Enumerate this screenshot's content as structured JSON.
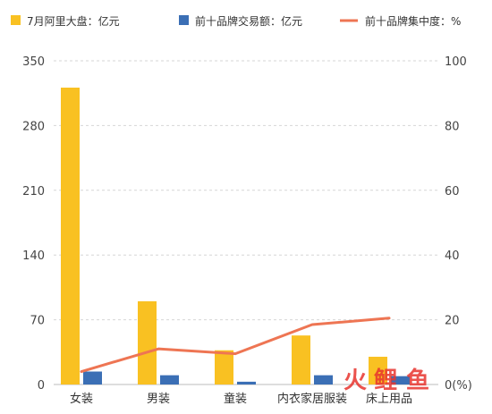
{
  "chart_data": {
    "type": "bar",
    "categories": [
      "女装",
      "男装",
      "童装",
      "内衣家居服装",
      "床上用品"
    ],
    "series": [
      {
        "name": "7月阿里大盘：亿元",
        "kind": "bar",
        "axis": "left",
        "color": "#F9C122",
        "values": [
          321,
          90,
          37,
          53,
          30
        ]
      },
      {
        "name": "前十品牌交易额：亿元",
        "kind": "bar",
        "axis": "left",
        "color": "#3B6FB5",
        "values": [
          14,
          10,
          3,
          10,
          9
        ]
      },
      {
        "name": "前十品牌集中度：%",
        "kind": "line",
        "axis": "right",
        "color": "#EE7553",
        "values": [
          4,
          11,
          9.5,
          18.5,
          20.5
        ]
      }
    ],
    "yleft": {
      "ticks": [
        "0",
        "70",
        "140",
        "210",
        "280",
        "350"
      ],
      "range": [
        0,
        350
      ]
    },
    "yright": {
      "ticks": [
        "0(%)",
        "20",
        "40",
        "60",
        "80",
        "100"
      ],
      "range": [
        0,
        100
      ]
    },
    "grid": true,
    "legend_position": "top",
    "watermark": "火鲤鱼"
  }
}
